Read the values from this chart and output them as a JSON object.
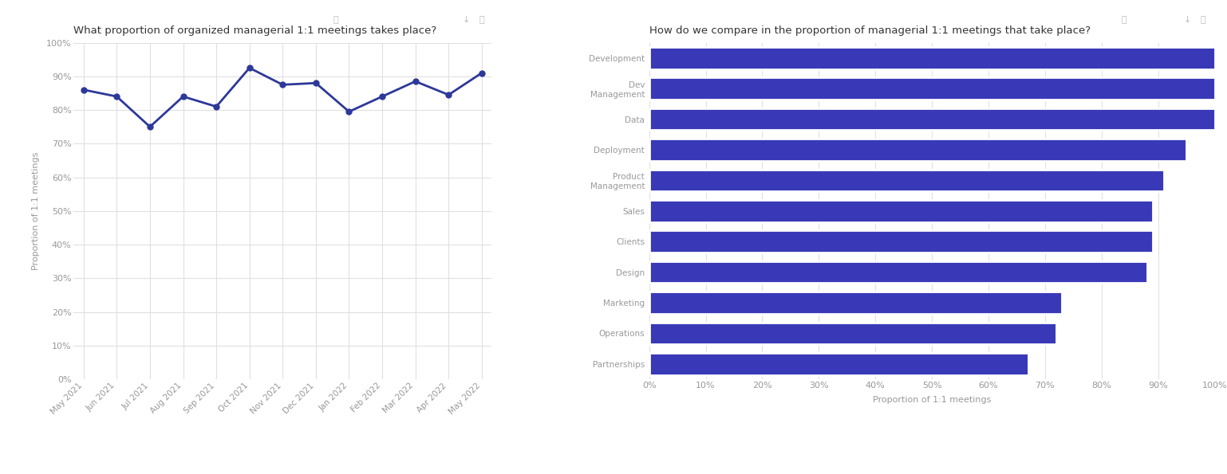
{
  "line_title": "What proportion of organized managerial 1:1 meetings takes place?",
  "line_ylabel": "Proportion of 1:1 meetings",
  "line_x_labels": [
    "May 2021",
    "Jun 2021",
    "Jul 2021",
    "Aug 2021",
    "Sep 2021",
    "Oct 2021",
    "Nov 2021",
    "Dec 2021",
    "Jan 2022",
    "Feb 2022",
    "Mar 2022",
    "Apr 2022",
    "May 2022"
  ],
  "line_y_values": [
    86,
    84,
    75,
    84,
    81,
    92.5,
    87.5,
    88,
    79.5,
    84,
    88.5,
    84.5,
    91
  ],
  "line_color": "#2d3899",
  "line_ylim": [
    0,
    100
  ],
  "line_yticks": [
    0,
    10,
    20,
    30,
    40,
    50,
    60,
    70,
    80,
    90,
    100
  ],
  "bar_title": "How do we compare in the proportion of managerial 1:1 meetings that take place?",
  "bar_xlabel": "Proportion of 1:1 meetings",
  "bar_categories": [
    "Development",
    "Dev\nManagement",
    "Data",
    "Deployment",
    "Product\nManagement",
    "Sales",
    "Clients",
    "Design",
    "Marketing",
    "Operations",
    "Partnerships"
  ],
  "bar_values": [
    100,
    100,
    100,
    95,
    91,
    89,
    89,
    88,
    73,
    72,
    67
  ],
  "bar_color": "#3939b8",
  "bar_xlim": [
    0,
    100
  ],
  "bar_xticks": [
    0,
    10,
    20,
    30,
    40,
    50,
    60,
    70,
    80,
    90,
    100
  ],
  "background_color": "#ffffff",
  "grid_color": "#e0e0e0",
  "tick_label_color": "#999999",
  "title_color": "#333333",
  "axis_label_color": "#999999",
  "info_icon_color": "#bbbbbb"
}
